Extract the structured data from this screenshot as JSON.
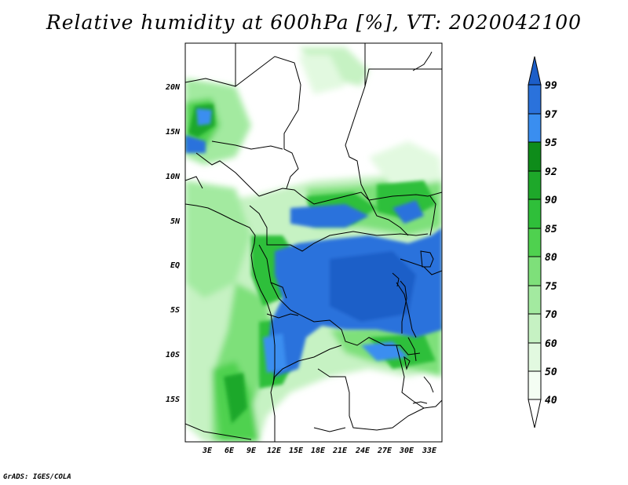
{
  "title": "Relative humidity at 600hPa [%], VT: 2020042100",
  "footer": "GrADS: IGES/COLA",
  "map": {
    "lat_labels": [
      "20N",
      "15N",
      "10N",
      "5N",
      "EQ",
      "5S",
      "10S",
      "15S"
    ],
    "lon_labels": [
      "3E",
      "6E",
      "9E",
      "12E",
      "15E",
      "18E",
      "21E",
      "24E",
      "27E",
      "30E",
      "33E"
    ]
  },
  "colorbar": {
    "levels": [
      "99",
      "97",
      "95",
      "92",
      "90",
      "85",
      "80",
      "75",
      "70",
      "60",
      "50",
      "40"
    ],
    "colors": [
      "#1c5ec8",
      "#2a72dc",
      "#3a8ef0",
      "#0e8c1a",
      "#1ea82a",
      "#2fbf3a",
      "#4fd14f",
      "#7ee07a",
      "#a3eaa0",
      "#c6f2c3",
      "#e2f9e0",
      "#f4fdf3"
    ]
  }
}
